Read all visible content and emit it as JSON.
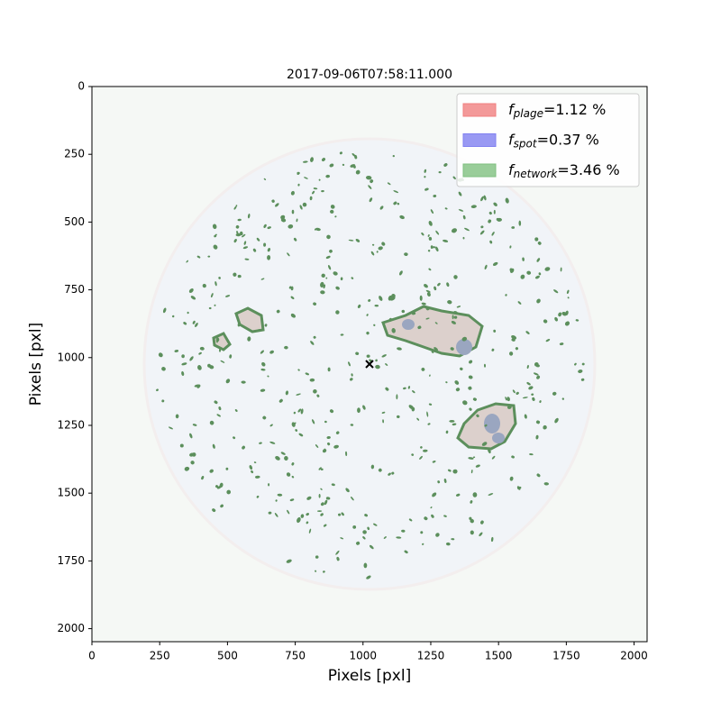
{
  "chart_data": {
    "type": "image",
    "title": "2017-09-06T07:58:11.000",
    "xlabel": "Pixels [pxl]",
    "ylabel": "Pixels [pxl]",
    "xlim": [
      0,
      2048
    ],
    "ylim": [
      2048,
      0
    ],
    "xticks": [
      0,
      250,
      500,
      750,
      1000,
      1250,
      1500,
      1750,
      2000
    ],
    "yticks": [
      0,
      250,
      500,
      750,
      1000,
      1250,
      1500,
      1750,
      2000
    ],
    "center": {
      "x": 1024,
      "y": 1024
    },
    "legend": "upper right",
    "series": [
      {
        "symbol": "f",
        "subscript": "plage",
        "value": 1.12,
        "value_label": "=1.12 %",
        "color": "#f08080"
      },
      {
        "symbol": "f",
        "subscript": "spot",
        "value": 0.37,
        "value_label": "=0.37 %",
        "color": "#8080f0"
      },
      {
        "symbol": "f",
        "subscript": "network",
        "value": 3.46,
        "value_label": "=3.46 %",
        "color": "#80c080"
      }
    ]
  }
}
